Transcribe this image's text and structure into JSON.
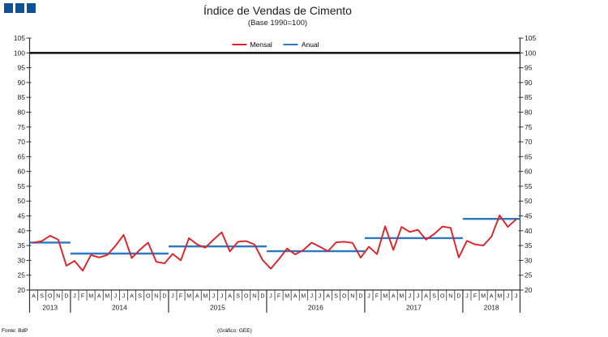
{
  "logo": {
    "color": "#0b5296",
    "square_count": 3
  },
  "header": {
    "title": "Índice de Vendas de Cimento",
    "subtitle": "(Base 1990=100)"
  },
  "legend": {
    "mensal_label": "Mensal",
    "anual_label": "Anual"
  },
  "footer": {
    "source": "Fonte: BdP",
    "credit": "(Gráfico: GEE)"
  },
  "colors": {
    "monthly_line": "#dd2127",
    "annual_line": "#2e78c2",
    "reference_line": "#1a1a1a",
    "axis": "#333333"
  },
  "chart_data": {
    "type": "line",
    "title": "Índice de Vendas de Cimento",
    "subtitle": "(Base 1990=100)",
    "ylim": [
      20,
      105
    ],
    "yticks": [
      20,
      25,
      30,
      35,
      40,
      45,
      50,
      55,
      60,
      65,
      70,
      75,
      80,
      85,
      90,
      95,
      100,
      105
    ],
    "reference_line": 100,
    "grid": false,
    "legend_position": "top-center",
    "years": [
      {
        "label": "2013",
        "months": [
          "A",
          "S",
          "O",
          "N",
          "D"
        ]
      },
      {
        "label": "2014",
        "months": [
          "J",
          "F",
          "M",
          "A",
          "M",
          "J",
          "J",
          "A",
          "S",
          "O",
          "N",
          "D"
        ]
      },
      {
        "label": "2015",
        "months": [
          "J",
          "F",
          "M",
          "A",
          "M",
          "J",
          "J",
          "A",
          "S",
          "O",
          "N",
          "D"
        ]
      },
      {
        "label": "2016",
        "months": [
          "J",
          "F",
          "M",
          "A",
          "M",
          "J",
          "J",
          "A",
          "S",
          "O",
          "N",
          "D"
        ]
      },
      {
        "label": "2017",
        "months": [
          "J",
          "F",
          "M",
          "A",
          "M",
          "J",
          "J",
          "A",
          "S",
          "O",
          "N",
          "D"
        ]
      },
      {
        "label": "2018",
        "months": [
          "J",
          "F",
          "M",
          "A",
          "M",
          "J",
          "J"
        ]
      }
    ],
    "series": [
      {
        "name": "Mensal",
        "color": "#dd2127",
        "values": [
          36.0,
          36.5,
          38.3,
          37.0,
          28.2,
          29.8,
          26.5,
          31.8,
          31.0,
          31.8,
          34.9,
          38.6,
          30.8,
          33.6,
          36.0,
          29.5,
          29.0,
          32.2,
          30.0,
          37.5,
          35.4,
          34.3,
          37.0,
          39.5,
          33.0,
          36.3,
          36.5,
          35.4,
          30.1,
          27.2,
          30.4,
          34.0,
          32.0,
          33.5,
          36.0,
          34.6,
          33.1,
          36.1,
          36.3,
          35.9,
          30.9,
          34.6,
          32.1,
          41.5,
          33.5,
          41.3,
          39.6,
          40.3,
          37.0,
          38.9,
          41.4,
          41.0,
          31.0,
          36.6,
          35.4,
          35.0,
          38.0,
          45.2,
          41.3,
          43.8
        ]
      },
      {
        "name": "Anual",
        "color": "#2e78c2",
        "per_year": [
          {
            "year": "2013",
            "value": 36.0
          },
          {
            "year": "2014",
            "value": 32.3
          },
          {
            "year": "2015",
            "value": 34.7
          },
          {
            "year": "2016",
            "value": 33.1
          },
          {
            "year": "2017",
            "value": 37.5
          },
          {
            "year": "2018",
            "value": 44.0
          }
        ]
      }
    ]
  }
}
